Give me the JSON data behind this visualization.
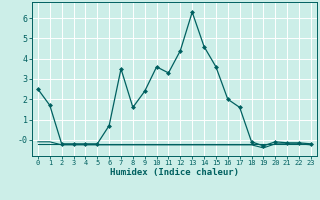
{
  "xlabel": "Humidex (Indice chaleur)",
  "x": [
    0,
    1,
    2,
    3,
    4,
    5,
    6,
    7,
    8,
    9,
    10,
    11,
    12,
    13,
    14,
    15,
    16,
    17,
    18,
    19,
    20,
    21,
    22,
    23
  ],
  "line1": [
    2.5,
    1.7,
    -0.2,
    -0.2,
    -0.2,
    -0.2,
    0.7,
    3.5,
    1.6,
    2.4,
    3.6,
    3.3,
    4.4,
    6.3,
    4.6,
    3.6,
    2.0,
    1.6,
    -0.1,
    -0.3,
    -0.1,
    -0.15,
    -0.15,
    -0.2
  ],
  "line2": [
    -0.2,
    -0.2,
    -0.2,
    -0.2,
    -0.2,
    -0.2,
    -0.2,
    -0.2,
    -0.2,
    -0.2,
    -0.2,
    -0.2,
    -0.2,
    -0.2,
    -0.2,
    -0.2,
    -0.2,
    -0.2,
    -0.2,
    -0.2,
    -0.2,
    -0.2,
    -0.2,
    -0.2
  ],
  "line3": [
    -0.1,
    -0.1,
    -0.25,
    -0.25,
    -0.25,
    -0.25,
    -0.25,
    -0.25,
    -0.25,
    -0.25,
    -0.25,
    -0.25,
    -0.25,
    -0.25,
    -0.25,
    -0.25,
    -0.25,
    -0.25,
    -0.25,
    -0.4,
    -0.2,
    -0.2,
    -0.2,
    -0.25
  ],
  "line_color": "#006060",
  "bg_color": "#cceee8",
  "grid_color": "#ffffff",
  "ylim": [
    -0.8,
    6.8
  ],
  "xlim": [
    -0.5,
    23.5
  ]
}
